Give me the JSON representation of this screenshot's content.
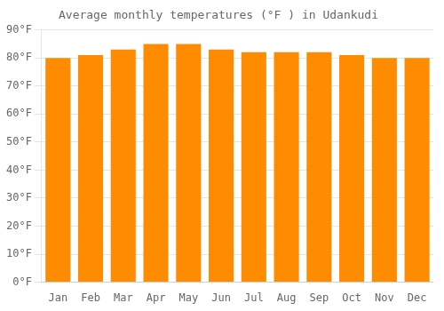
{
  "chart_data": {
    "type": "bar",
    "title": "Average monthly temperatures (°F ) in Udankudi",
    "categories": [
      "Jan",
      "Feb",
      "Mar",
      "Apr",
      "May",
      "Jun",
      "Jul",
      "Aug",
      "Sep",
      "Oct",
      "Nov",
      "Dec"
    ],
    "values": [
      80,
      81,
      83,
      85,
      85,
      83,
      82,
      82,
      82,
      81,
      80,
      80
    ],
    "color": "#FF8C00",
    "ylim": [
      0,
      90
    ],
    "yticks": [
      {
        "value": 0,
        "label": "0°F"
      },
      {
        "value": 10,
        "label": "10°F"
      },
      {
        "value": 20,
        "label": "20°F"
      },
      {
        "value": 30,
        "label": "30°F"
      },
      {
        "value": 40,
        "label": "40°F"
      },
      {
        "value": 50,
        "label": "50°F"
      },
      {
        "value": 60,
        "label": "60°F"
      },
      {
        "value": 70,
        "label": "70°F"
      },
      {
        "value": 80,
        "label": "80°F"
      },
      {
        "value": 90,
        "label": "90°F"
      }
    ],
    "grid": true
  }
}
